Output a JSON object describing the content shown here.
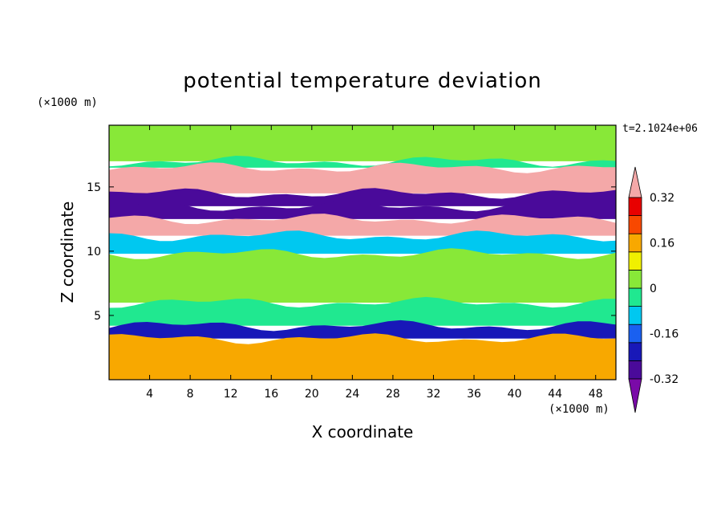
{
  "chart_data": {
    "type": "heatmap",
    "title": "potential temperature deviation",
    "xlabel": "X coordinate",
    "ylabel": "Z coordinate",
    "x_unit": "(×1000 m)",
    "y_unit": "(×1000 m)",
    "time_label": "t=2.1024e+06",
    "xlim": [
      0,
      50
    ],
    "ylim": [
      0,
      19.8
    ],
    "x_ticks": [
      4,
      8,
      12,
      16,
      20,
      24,
      28,
      32,
      36,
      40,
      44,
      48
    ],
    "y_ticks": [
      5,
      10,
      15
    ],
    "colorbar": {
      "levels": [
        -0.4,
        -0.32,
        -0.24,
        -0.16,
        -0.08,
        0,
        0.08,
        0.16,
        0.24,
        0.32,
        0.4
      ],
      "colors": [
        "#7a0aa8",
        "#4a0a9a",
        "#1818b8",
        "#1a60f0",
        "#00c8f0",
        "#20e890",
        "#88e838",
        "#f0f000",
        "#f8a800",
        "#f84800",
        "#e80000",
        "#f4a8a8"
      ],
      "tick_labels": [
        "0.32",
        "0.16",
        "0",
        "-0.16",
        "-0.32"
      ],
      "tick_values": [
        0.32,
        0.16,
        0,
        -0.16,
        -0.32
      ],
      "extend": "both"
    },
    "bands": [
      {
        "z_top": 19.8,
        "z_bottom": 17.0,
        "value": 0.06
      },
      {
        "z_top": 17.0,
        "z_bottom": 16.5,
        "value": -0.08
      },
      {
        "z_top": 16.5,
        "z_bottom": 14.5,
        "value": 0.45
      },
      {
        "z_top": 14.5,
        "z_bottom": 13.5,
        "value": -0.35
      },
      {
        "z_top": 13.5,
        "z_bottom": 12.5,
        "value": -0.38
      },
      {
        "z_top": 12.5,
        "z_bottom": 11.2,
        "value": 0.42
      },
      {
        "z_top": 11.2,
        "z_bottom": 9.8,
        "value": -0.12
      },
      {
        "z_top": 9.8,
        "z_bottom": 6.0,
        "value": 0.04
      },
      {
        "z_top": 6.0,
        "z_bottom": 4.2,
        "value": -0.05
      },
      {
        "z_top": 4.2,
        "z_bottom": 3.2,
        "value": -0.3
      },
      {
        "z_top": 3.2,
        "z_bottom": 0.0,
        "value": 0.2
      }
    ]
  }
}
